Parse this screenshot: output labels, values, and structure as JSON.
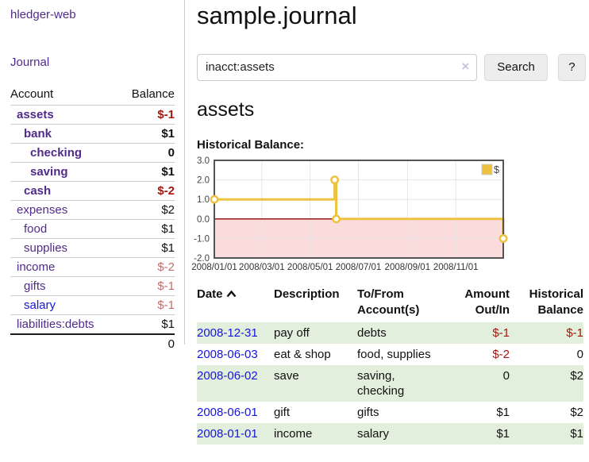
{
  "app": {
    "title": "hledger-web",
    "nav": {
      "journal_label": "Journal"
    }
  },
  "sidebar": {
    "headers": {
      "account": "Account",
      "balance": "Balance"
    },
    "accounts": [
      {
        "name": "assets",
        "balance": "$-1"
      },
      {
        "name": "bank",
        "balance": "$1"
      },
      {
        "name": "checking",
        "balance": "0"
      },
      {
        "name": "saving",
        "balance": "$1"
      },
      {
        "name": "cash",
        "balance": "$-2"
      },
      {
        "name": "expenses",
        "balance": "$2"
      },
      {
        "name": "food",
        "balance": "$1"
      },
      {
        "name": "supplies",
        "balance": "$1"
      },
      {
        "name": "income",
        "balance": "$-2"
      },
      {
        "name": "gifts",
        "balance": "$-1"
      },
      {
        "name": "salary",
        "balance": "$-1"
      },
      {
        "name": "liabilities:debts",
        "balance": "$1"
      }
    ],
    "total": "0"
  },
  "main": {
    "journal_title": "sample.journal",
    "search": {
      "value": "inacct:assets",
      "clear_icon": "×",
      "search_button": "Search",
      "help_button": "?"
    },
    "account_heading": "assets",
    "chart_title": "Historical Balance:"
  },
  "chart_data": {
    "type": "line",
    "style": "step-after",
    "title": "Historical Balance:",
    "series": [
      {
        "name": "$",
        "color": "#edc240",
        "points": [
          [
            "2008-01-01",
            1
          ],
          [
            "2008-06-01",
            2
          ],
          [
            "2008-06-03",
            0
          ],
          [
            "2008-12-31",
            -1
          ]
        ]
      }
    ],
    "xlim": [
      "2008-01-01",
      "2008-12-31"
    ],
    "ylim": [
      -2,
      3
    ],
    "x_ticks": [
      {
        "date": "2008-01-01",
        "label": "2008/01/01"
      },
      {
        "date": "2008-03-01",
        "label": "2008/03/01"
      },
      {
        "date": "2008-05-01",
        "label": "2008/05/01"
      },
      {
        "date": "2008-07-01",
        "label": "2008/07/01"
      },
      {
        "date": "2008-09-01",
        "label": "2008/09/01"
      },
      {
        "date": "2008-11-01",
        "label": "2008/11/01"
      }
    ],
    "y_ticks": [
      {
        "v": 3,
        "label": "3.0"
      },
      {
        "v": 2,
        "label": "2.0"
      },
      {
        "v": 1,
        "label": "1.0"
      },
      {
        "v": 0,
        "label": "0.0"
      },
      {
        "v": -1,
        "label": "-1.0"
      },
      {
        "v": -2,
        "label": "-2.0"
      }
    ],
    "grid": true,
    "legend": {
      "position": "top-right",
      "entries": [
        {
          "label": "$",
          "color": "#edc240"
        }
      ]
    },
    "negative_region_color": "#fbdcdc",
    "zero_line_color": "#8f0000",
    "border_color": "#545454",
    "grid_color": "#e6e6e6"
  },
  "register": {
    "headers": {
      "date": "Date",
      "description": "Description",
      "accounts_line1": "To/From",
      "accounts_line2": "Account(s)",
      "amount_line1": "Amount",
      "amount_line2": "Out/In",
      "balance_line1": "Historical",
      "balance_line2": "Balance"
    },
    "rows": [
      {
        "date": "2008-12-31",
        "description": "pay off",
        "accounts": "debts",
        "amount": "$-1",
        "balance": "$-1"
      },
      {
        "date": "2008-06-03",
        "description": "eat & shop",
        "accounts": "food, supplies",
        "amount": "$-2",
        "balance": "0"
      },
      {
        "date": "2008-06-02",
        "description": "save",
        "accounts": "saving, checking",
        "amount": "0",
        "balance": "$2"
      },
      {
        "date": "2008-06-01",
        "description": "gift",
        "accounts": "gifts",
        "amount": "$1",
        "balance": "$2"
      },
      {
        "date": "2008-01-01",
        "description": "income",
        "accounts": "salary",
        "amount": "$1",
        "balance": "$1"
      }
    ]
  },
  "colors": {
    "link_purple": "#512b8b",
    "link_blue": "#1515dd",
    "negative_strong": "#a01710",
    "negative_soft": "#bf6f6a",
    "row_highlight_green": "#e3efdd",
    "chart_gold": "#edc240"
  }
}
